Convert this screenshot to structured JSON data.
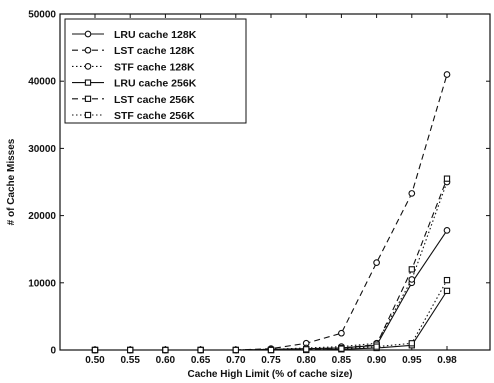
{
  "chart_data": {
    "type": "line",
    "title": "",
    "xlabel": "Cache High Limit (% of cache size)",
    "ylabel": "# of Cache Misses",
    "x_ticks": [
      "0.50",
      "0.55",
      "0.60",
      "0.65",
      "0.70",
      "0.75",
      "0.80",
      "0.85",
      "0.90",
      "0.95",
      "0.98"
    ],
    "y_ticks": [
      "0",
      "10000",
      "20000",
      "30000",
      "40000",
      "50000"
    ],
    "ylim": [
      0,
      50000
    ],
    "grid": false,
    "legend_position": "top-left",
    "series": [
      {
        "name": "LRU cache 128K",
        "line": "solid",
        "marker": "circle",
        "values": [
          0,
          0,
          0,
          0,
          0,
          100,
          200,
          300,
          700,
          10000,
          17800
        ]
      },
      {
        "name": "LST cache 128K",
        "line": "dashed",
        "marker": "circle",
        "values": [
          0,
          0,
          0,
          0,
          0,
          200,
          1000,
          2500,
          13000,
          23300,
          41000
        ]
      },
      {
        "name": "STF cache 128K",
        "line": "dotted",
        "marker": "circle",
        "values": [
          0,
          0,
          0,
          0,
          0,
          100,
          300,
          500,
          1000,
          10500,
          25000
        ]
      },
      {
        "name": "LRU cache 256K",
        "line": "solid",
        "marker": "square",
        "values": [
          0,
          0,
          0,
          0,
          0,
          0,
          0,
          100,
          300,
          700,
          8800
        ]
      },
      {
        "name": "LST cache 256K",
        "line": "dashed",
        "marker": "square",
        "values": [
          0,
          0,
          0,
          0,
          0,
          0,
          100,
          300,
          800,
          12000,
          25500
        ]
      },
      {
        "name": "STF cache 256K",
        "line": "dotted",
        "marker": "square",
        "values": [
          0,
          0,
          0,
          0,
          0,
          0,
          100,
          200,
          500,
          1000,
          10400
        ]
      }
    ]
  }
}
